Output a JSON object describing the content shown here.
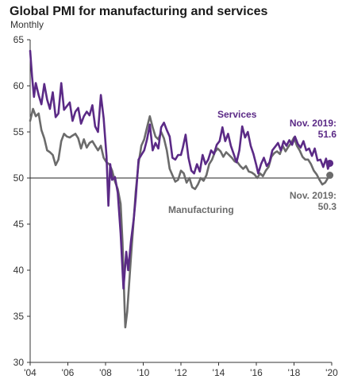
{
  "chart_data": {
    "type": "line",
    "title": "Global PMI for manufacturing and services",
    "subtitle": "Monthly",
    "xlabel": "",
    "ylabel": "",
    "xlim": [
      2004.0,
      2020.0
    ],
    "ylim": [
      30,
      65
    ],
    "yticks": [
      30,
      35,
      40,
      45,
      50,
      55,
      60,
      65
    ],
    "xticks": [
      {
        "value": 2004,
        "label": "'04"
      },
      {
        "value": 2006,
        "label": "'06"
      },
      {
        "value": 2008,
        "label": "'08"
      },
      {
        "value": 2010,
        "label": "'10"
      },
      {
        "value": 2012,
        "label": "'12"
      },
      {
        "value": 2014,
        "label": "'14"
      },
      {
        "value": 2016,
        "label": "'16"
      },
      {
        "value": 2018,
        "label": "'18"
      },
      {
        "value": 2020,
        "label": "'20"
      }
    ],
    "reference_line": 50,
    "grid": false,
    "series": [
      {
        "name": "Services",
        "color": "#5b2a86",
        "points": [
          [
            2004.0,
            63.8
          ],
          [
            2004.1,
            61.0
          ],
          [
            2004.2,
            58.8
          ],
          [
            2004.3,
            60.3
          ],
          [
            2004.45,
            59.0
          ],
          [
            2004.6,
            58.0
          ],
          [
            2004.75,
            60.2
          ],
          [
            2004.9,
            58.5
          ],
          [
            2005.05,
            57.5
          ],
          [
            2005.2,
            59.3
          ],
          [
            2005.35,
            56.6
          ],
          [
            2005.5,
            57.0
          ],
          [
            2005.65,
            60.3
          ],
          [
            2005.8,
            57.4
          ],
          [
            2005.95,
            57.8
          ],
          [
            2006.1,
            58.2
          ],
          [
            2006.25,
            56.2
          ],
          [
            2006.4,
            57.2
          ],
          [
            2006.55,
            57.6
          ],
          [
            2006.7,
            55.9
          ],
          [
            2006.85,
            56.7
          ],
          [
            2007.0,
            57.2
          ],
          [
            2007.15,
            56.8
          ],
          [
            2007.3,
            57.9
          ],
          [
            2007.45,
            55.6
          ],
          [
            2007.6,
            55.0
          ],
          [
            2007.75,
            59.0
          ],
          [
            2007.9,
            56.5
          ],
          [
            2008.05,
            52.4
          ],
          [
            2008.15,
            47.0
          ],
          [
            2008.25,
            51.5
          ],
          [
            2008.35,
            49.8
          ],
          [
            2008.5,
            50.1
          ],
          [
            2008.65,
            48.4
          ],
          [
            2008.8,
            44.0
          ],
          [
            2008.95,
            38.0
          ],
          [
            2009.1,
            42.0
          ],
          [
            2009.2,
            40.0
          ],
          [
            2009.35,
            43.2
          ],
          [
            2009.5,
            45.6
          ],
          [
            2009.6,
            47.8
          ],
          [
            2009.75,
            52.0
          ],
          [
            2009.9,
            52.5
          ],
          [
            2010.05,
            53.0
          ],
          [
            2010.2,
            54.2
          ],
          [
            2010.35,
            55.8
          ],
          [
            2010.5,
            53.0
          ],
          [
            2010.65,
            53.8
          ],
          [
            2010.8,
            53.2
          ],
          [
            2010.95,
            55.5
          ],
          [
            2011.1,
            56.0
          ],
          [
            2011.25,
            55.2
          ],
          [
            2011.4,
            54.5
          ],
          [
            2011.55,
            52.2
          ],
          [
            2011.7,
            52.0
          ],
          [
            2011.85,
            52.5
          ],
          [
            2012.0,
            52.5
          ],
          [
            2012.1,
            53.3
          ],
          [
            2012.25,
            54.7
          ],
          [
            2012.4,
            52.2
          ],
          [
            2012.55,
            50.8
          ],
          [
            2012.7,
            50.5
          ],
          [
            2012.85,
            51.5
          ],
          [
            2013.0,
            50.7
          ],
          [
            2013.15,
            52.5
          ],
          [
            2013.3,
            51.5
          ],
          [
            2013.45,
            52.0
          ],
          [
            2013.6,
            53.0
          ],
          [
            2013.75,
            52.6
          ],
          [
            2013.9,
            53.6
          ],
          [
            2014.05,
            54.0
          ],
          [
            2014.2,
            55.5
          ],
          [
            2014.35,
            54.0
          ],
          [
            2014.5,
            54.8
          ],
          [
            2014.65,
            53.5
          ],
          [
            2014.8,
            52.6
          ],
          [
            2014.95,
            51.7
          ],
          [
            2015.1,
            53.0
          ],
          [
            2015.25,
            55.6
          ],
          [
            2015.4,
            54.4
          ],
          [
            2015.55,
            55.0
          ],
          [
            2015.7,
            53.5
          ],
          [
            2015.85,
            52.6
          ],
          [
            2016.0,
            51.4
          ],
          [
            2016.1,
            50.5
          ],
          [
            2016.25,
            51.5
          ],
          [
            2016.4,
            52.2
          ],
          [
            2016.55,
            51.3
          ],
          [
            2016.7,
            51.7
          ],
          [
            2016.85,
            53.0
          ],
          [
            2017.0,
            53.4
          ],
          [
            2017.15,
            53.8
          ],
          [
            2017.3,
            53.0
          ],
          [
            2017.45,
            54.0
          ],
          [
            2017.6,
            53.5
          ],
          [
            2017.75,
            54.1
          ],
          [
            2017.9,
            53.6
          ],
          [
            2018.05,
            54.5
          ],
          [
            2018.2,
            53.7
          ],
          [
            2018.35,
            53.3
          ],
          [
            2018.5,
            54.0
          ],
          [
            2018.65,
            53.0
          ],
          [
            2018.8,
            53.2
          ],
          [
            2018.95,
            52.4
          ],
          [
            2019.1,
            53.2
          ],
          [
            2019.25,
            51.9
          ],
          [
            2019.4,
            52.0
          ],
          [
            2019.55,
            51.2
          ],
          [
            2019.7,
            52.1
          ],
          [
            2019.8,
            51.0
          ],
          [
            2019.9,
            51.6
          ]
        ]
      },
      {
        "name": "Manufacturing",
        "color": "#6b6b6b",
        "points": [
          [
            2004.0,
            56.2
          ],
          [
            2004.15,
            57.5
          ],
          [
            2004.3,
            56.7
          ],
          [
            2004.45,
            57.0
          ],
          [
            2004.6,
            55.2
          ],
          [
            2004.75,
            54.3
          ],
          [
            2004.9,
            53.0
          ],
          [
            2005.05,
            52.8
          ],
          [
            2005.2,
            52.5
          ],
          [
            2005.35,
            51.4
          ],
          [
            2005.5,
            52.0
          ],
          [
            2005.65,
            54.0
          ],
          [
            2005.8,
            54.8
          ],
          [
            2005.95,
            54.5
          ],
          [
            2006.1,
            54.4
          ],
          [
            2006.25,
            54.6
          ],
          [
            2006.4,
            54.8
          ],
          [
            2006.55,
            54.3
          ],
          [
            2006.7,
            53.2
          ],
          [
            2006.85,
            54.2
          ],
          [
            2007.0,
            53.3
          ],
          [
            2007.15,
            53.8
          ],
          [
            2007.3,
            54.0
          ],
          [
            2007.45,
            53.5
          ],
          [
            2007.6,
            53.0
          ],
          [
            2007.75,
            53.5
          ],
          [
            2007.9,
            52.2
          ],
          [
            2008.05,
            51.7
          ],
          [
            2008.2,
            51.5
          ],
          [
            2008.35,
            50.8
          ],
          [
            2008.5,
            49.6
          ],
          [
            2008.65,
            48.8
          ],
          [
            2008.8,
            47.2
          ],
          [
            2008.9,
            43.0
          ],
          [
            2009.0,
            36.5
          ],
          [
            2009.05,
            33.8
          ],
          [
            2009.15,
            35.5
          ],
          [
            2009.25,
            38.5
          ],
          [
            2009.35,
            41.5
          ],
          [
            2009.5,
            45.6
          ],
          [
            2009.6,
            48.5
          ],
          [
            2009.75,
            51.6
          ],
          [
            2009.9,
            53.5
          ],
          [
            2010.05,
            54.2
          ],
          [
            2010.2,
            55.5
          ],
          [
            2010.35,
            56.7
          ],
          [
            2010.5,
            55.5
          ],
          [
            2010.65,
            54.5
          ],
          [
            2010.8,
            54.2
          ],
          [
            2010.95,
            55.0
          ],
          [
            2011.1,
            54.3
          ],
          [
            2011.25,
            53.0
          ],
          [
            2011.4,
            51.0
          ],
          [
            2011.55,
            50.3
          ],
          [
            2011.7,
            49.6
          ],
          [
            2011.85,
            49.8
          ],
          [
            2012.0,
            50.8
          ],
          [
            2012.15,
            50.5
          ],
          [
            2012.3,
            49.5
          ],
          [
            2012.45,
            50.0
          ],
          [
            2012.6,
            49.0
          ],
          [
            2012.75,
            48.8
          ],
          [
            2012.9,
            49.3
          ],
          [
            2013.05,
            50.0
          ],
          [
            2013.2,
            49.7
          ],
          [
            2013.35,
            50.3
          ],
          [
            2013.5,
            51.5
          ],
          [
            2013.65,
            52.0
          ],
          [
            2013.8,
            52.8
          ],
          [
            2013.95,
            53.2
          ],
          [
            2014.1,
            52.9
          ],
          [
            2014.25,
            52.3
          ],
          [
            2014.4,
            52.8
          ],
          [
            2014.55,
            52.5
          ],
          [
            2014.7,
            52.2
          ],
          [
            2014.85,
            51.8
          ],
          [
            2015.0,
            51.7
          ],
          [
            2015.15,
            51.3
          ],
          [
            2015.3,
            51.0
          ],
          [
            2015.45,
            51.3
          ],
          [
            2015.6,
            50.7
          ],
          [
            2015.75,
            50.6
          ],
          [
            2015.9,
            50.4
          ],
          [
            2016.05,
            50.0
          ],
          [
            2016.2,
            50.5
          ],
          [
            2016.35,
            50.2
          ],
          [
            2016.5,
            50.8
          ],
          [
            2016.65,
            51.2
          ],
          [
            2016.8,
            52.3
          ],
          [
            2016.95,
            52.7
          ],
          [
            2017.1,
            52.9
          ],
          [
            2017.25,
            52.6
          ],
          [
            2017.4,
            53.5
          ],
          [
            2017.55,
            52.9
          ],
          [
            2017.7,
            53.4
          ],
          [
            2017.85,
            53.8
          ],
          [
            2018.0,
            54.4
          ],
          [
            2018.15,
            53.5
          ],
          [
            2018.3,
            53.0
          ],
          [
            2018.45,
            52.3
          ],
          [
            2018.6,
            52.0
          ],
          [
            2018.75,
            52.0
          ],
          [
            2018.9,
            51.5
          ],
          [
            2019.05,
            50.8
          ],
          [
            2019.2,
            50.4
          ],
          [
            2019.35,
            49.8
          ],
          [
            2019.5,
            49.3
          ],
          [
            2019.65,
            49.5
          ],
          [
            2019.8,
            50.0
          ],
          [
            2019.9,
            50.3
          ]
        ]
      }
    ],
    "annotations": {
      "services_label": "Services",
      "manufacturing_label": "Manufacturing",
      "services_last_line1": "Nov. 2019:",
      "services_last_line2": "51.6",
      "manufacturing_last_line1": "Nov. 2019:",
      "manufacturing_last_line2": "50.3"
    }
  }
}
